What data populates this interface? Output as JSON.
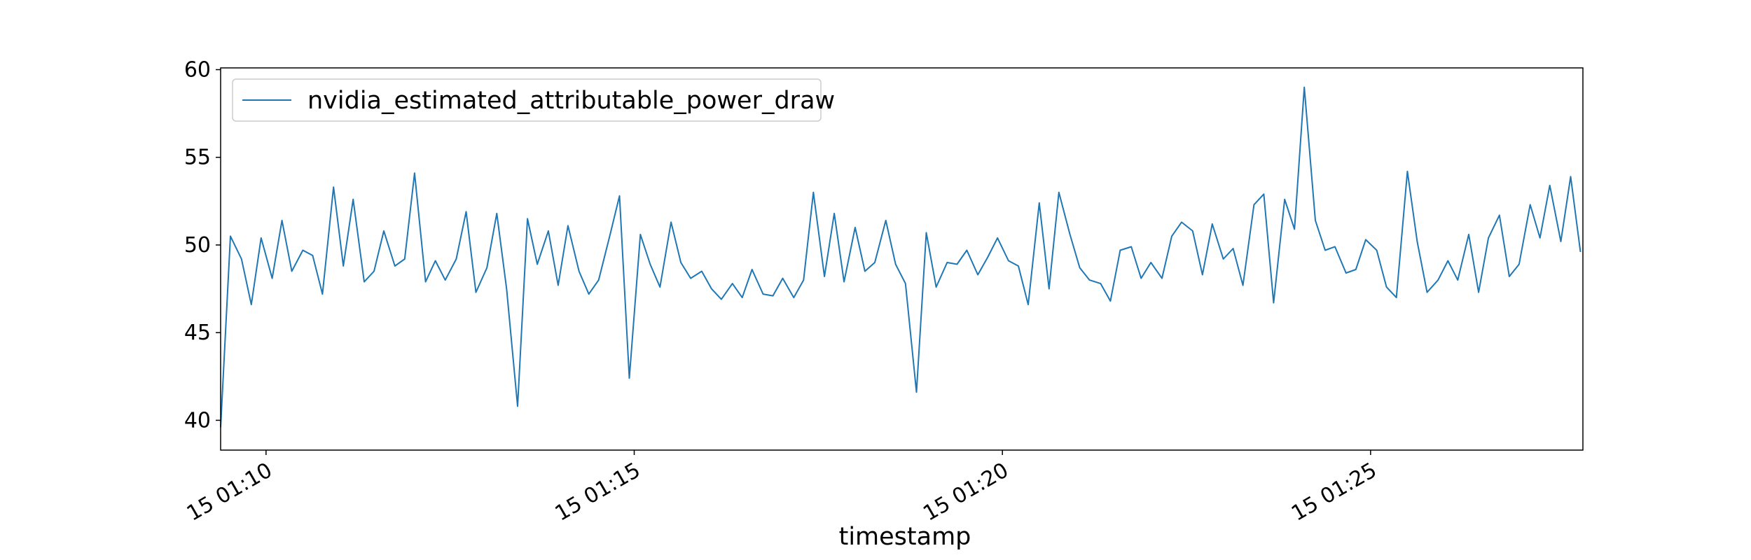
{
  "chart_data": {
    "type": "line",
    "title": "",
    "xlabel": "timestamp",
    "ylabel": "",
    "x_format": "DD HH:MM (day 15)",
    "xlim": [
      "15 01:09:23",
      "15 01:27:53"
    ],
    "ylim": [
      38.3,
      60.1
    ],
    "grid": false,
    "legend_position": "top-left",
    "y_ticks": [
      40,
      45,
      50,
      55,
      60
    ],
    "x_ticks": [
      {
        "value": "15 01:10:00",
        "label": "15 01:10"
      },
      {
        "value": "15 01:15:00",
        "label": "15 01:15"
      },
      {
        "value": "15 01:20:00",
        "label": "15 01:20"
      },
      {
        "value": "15 01:25:00",
        "label": "15 01:25"
      }
    ],
    "series": [
      {
        "name": "nvidia_estimated_attributable_power_draw",
        "color": "#1f77b4",
        "x": [
          "15 01:09:23",
          "15 01:09:31",
          "15 01:09:40",
          "15 01:09:48",
          "15 01:09:56",
          "15 01:10:05",
          "15 01:10:13",
          "15 01:10:21",
          "15 01:10:30",
          "15 01:10:38",
          "15 01:10:46",
          "15 01:10:55",
          "15 01:11:03",
          "15 01:11:11",
          "15 01:11:20",
          "15 01:11:28",
          "15 01:11:36",
          "15 01:11:45",
          "15 01:11:53",
          "15 01:12:01",
          "15 01:12:10",
          "15 01:12:18",
          "15 01:12:26",
          "15 01:12:35",
          "15 01:12:43",
          "15 01:12:51",
          "15 01:13:00",
          "15 01:13:08",
          "15 01:13:16",
          "15 01:13:25",
          "15 01:13:33",
          "15 01:13:41",
          "15 01:13:50",
          "15 01:13:58",
          "15 01:14:06",
          "15 01:14:15",
          "15 01:14:23",
          "15 01:14:31",
          "15 01:14:40",
          "15 01:14:48",
          "15 01:14:56",
          "15 01:15:05",
          "15 01:15:13",
          "15 01:15:21",
          "15 01:15:30",
          "15 01:15:38",
          "15 01:15:46",
          "15 01:15:55",
          "15 01:16:03",
          "15 01:16:11",
          "15 01:16:20",
          "15 01:16:28",
          "15 01:16:36",
          "15 01:16:45",
          "15 01:16:53",
          "15 01:17:01",
          "15 01:17:10",
          "15 01:17:18",
          "15 01:17:26",
          "15 01:17:35",
          "15 01:17:43",
          "15 01:17:51",
          "15 01:18:00",
          "15 01:18:08",
          "15 01:18:16",
          "15 01:18:25",
          "15 01:18:33",
          "15 01:18:41",
          "15 01:18:50",
          "15 01:18:58",
          "15 01:19:06",
          "15 01:19:15",
          "15 01:19:23",
          "15 01:19:31",
          "15 01:19:40",
          "15 01:19:48",
          "15 01:19:56",
          "15 01:20:05",
          "15 01:20:13",
          "15 01:20:21",
          "15 01:20:30",
          "15 01:20:38",
          "15 01:20:46",
          "15 01:20:55",
          "15 01:21:03",
          "15 01:21:11",
          "15 01:21:20",
          "15 01:21:28",
          "15 01:21:36",
          "15 01:21:45",
          "15 01:21:53",
          "15 01:22:01",
          "15 01:22:10",
          "15 01:22:18",
          "15 01:22:26",
          "15 01:22:35",
          "15 01:22:43",
          "15 01:22:51",
          "15 01:23:00",
          "15 01:23:08",
          "15 01:23:16",
          "15 01:23:25",
          "15 01:23:33",
          "15 01:23:41",
          "15 01:23:50",
          "15 01:23:58",
          "15 01:24:06",
          "15 01:24:15",
          "15 01:24:23",
          "15 01:24:31",
          "15 01:24:40",
          "15 01:24:48",
          "15 01:24:56",
          "15 01:25:05",
          "15 01:25:13",
          "15 01:25:21",
          "15 01:25:30",
          "15 01:25:38",
          "15 01:25:46",
          "15 01:25:55",
          "15 01:26:03",
          "15 01:26:11",
          "15 01:26:20",
          "15 01:26:28",
          "15 01:26:36",
          "15 01:26:45",
          "15 01:26:53",
          "15 01:27:01",
          "15 01:27:10",
          "15 01:27:18",
          "15 01:27:26",
          "15 01:27:35",
          "15 01:27:43",
          "15 01:27:51"
        ],
        "values": [
          39.6,
          50.5,
          49.2,
          46.6,
          50.4,
          48.1,
          51.4,
          48.5,
          49.7,
          49.4,
          47.2,
          53.3,
          48.8,
          52.6,
          47.9,
          48.5,
          50.8,
          48.8,
          49.2,
          54.1,
          47.9,
          49.1,
          48.0,
          49.2,
          51.9,
          47.3,
          48.7,
          51.8,
          47.5,
          40.8,
          51.5,
          48.9,
          50.8,
          47.7,
          51.1,
          48.5,
          47.2,
          48.0,
          50.5,
          52.8,
          42.4,
          50.6,
          48.9,
          47.6,
          51.3,
          49.0,
          48.1,
          48.5,
          47.5,
          46.9,
          47.8,
          47.0,
          48.6,
          47.2,
          47.1,
          48.1,
          47.0,
          48.0,
          53.0,
          48.2,
          51.8,
          47.9,
          51.0,
          48.5,
          49.0,
          51.4,
          48.9,
          47.8,
          41.6,
          50.7,
          47.6,
          49.0,
          48.9,
          49.7,
          48.3,
          49.3,
          50.4,
          49.1,
          48.8,
          46.6,
          52.4,
          47.5,
          53.0,
          50.6,
          48.7,
          48.0,
          47.8,
          46.8,
          49.7,
          49.9,
          48.1,
          49.0,
          48.1,
          50.5,
          51.3,
          50.8,
          48.3,
          51.2,
          49.2,
          49.8,
          47.7,
          52.3,
          52.9,
          46.7,
          52.6,
          50.9,
          59.0,
          51.4,
          49.7,
          49.9,
          48.4,
          48.6,
          50.3,
          49.7,
          47.6,
          47.0,
          54.2,
          50.2,
          47.3,
          48.0,
          49.1,
          48.0,
          50.6,
          47.3,
          50.4,
          51.7,
          48.2,
          48.9,
          52.3,
          50.4,
          53.4,
          50.2,
          53.9,
          49.6
        ]
      }
    ]
  }
}
